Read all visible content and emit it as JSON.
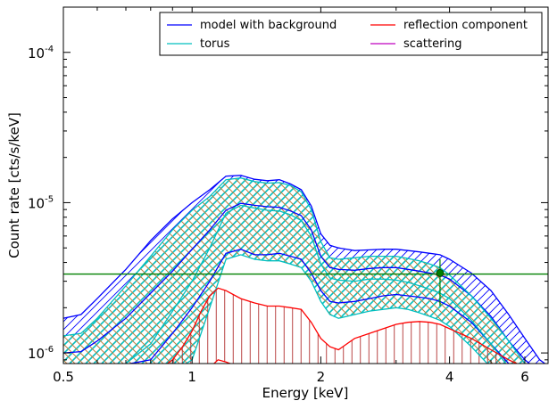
{
  "chart_data": {
    "type": "line",
    "xlabel": "Energy [keV]",
    "ylabel": "Count rate [cts/s/keV]",
    "xscale": "log",
    "yscale": "log",
    "xlim": [
      0.5,
      6.8
    ],
    "ylim": [
      8.5e-07,
      0.0002
    ],
    "grid": false,
    "legend_position": "top-right",
    "x_ticks": [
      {
        "value": 0.5,
        "label": "0.5"
      },
      {
        "value": 1,
        "label": "1"
      },
      {
        "value": 2,
        "label": "2"
      },
      {
        "value": 4,
        "label": "4"
      },
      {
        "value": 6,
        "label": "6"
      }
    ],
    "y_ticks": [
      {
        "value": 1e-06,
        "base": "10",
        "exp": "-6"
      },
      {
        "value": 1e-05,
        "base": "10",
        "exp": "-5"
      },
      {
        "value": 0.0001,
        "base": "10",
        "exp": "-4"
      }
    ],
    "legend": [
      {
        "label": "model with background",
        "color": "#0000ff"
      },
      {
        "label": "torus",
        "color": "#00bfbf"
      },
      {
        "label": "reflection component",
        "color": "#ff0000"
      },
      {
        "label": "scattering",
        "color": "#bf00bf"
      }
    ],
    "background_level": {
      "y": 3.35e-06,
      "color": "#008000"
    },
    "data_point": {
      "x": 3.8,
      "y": 3.4e-06,
      "yerr_low": 2.05e-06,
      "yerr_high": 4.2e-06,
      "color": "#008000"
    },
    "series": [
      {
        "name": "model with background",
        "color": "#0000ff",
        "x": [
          0.5,
          0.55,
          0.6,
          0.7,
          0.8,
          0.9,
          1.0,
          1.1,
          1.2,
          1.3,
          1.4,
          1.5,
          1.6,
          1.7,
          1.8,
          1.9,
          2.0,
          2.1,
          2.2,
          2.4,
          2.6,
          2.8,
          3.0,
          3.2,
          3.4,
          3.6,
          3.8,
          4.0,
          4.5,
          5.0,
          5.5,
          6.0,
          6.5,
          6.8
        ],
        "upper": [
          1.7e-06,
          1.8e-06,
          2.3e-06,
          3.6e-06,
          5.6e-06,
          7.8e-06,
          1e-05,
          1.22e-05,
          1.5e-05,
          1.52e-05,
          1.43e-05,
          1.4e-05,
          1.42e-05,
          1.33e-05,
          1.22e-05,
          9.5e-06,
          6.2e-06,
          5.2e-06,
          5e-06,
          4.8e-06,
          4.85e-06,
          4.9e-06,
          4.9e-06,
          4.8e-06,
          4.7e-06,
          4.6e-06,
          4.5e-06,
          4.2e-06,
          3.4e-06,
          2.6e-06,
          1.8e-06,
          1.25e-06,
          9e-07,
          8.2e-07
        ],
        "middle": [
          1e-06,
          1.02e-06,
          1.2e-06,
          1.7e-06,
          2.5e-06,
          3.5e-06,
          4.9e-06,
          6.6e-06,
          8.9e-06,
          9.9e-06,
          9.6e-06,
          9.4e-06,
          9.3e-06,
          8.8e-06,
          8.2e-06,
          6.6e-06,
          4.4e-06,
          3.7e-06,
          3.6e-06,
          3.55e-06,
          3.65e-06,
          3.7e-06,
          3.7e-06,
          3.6e-06,
          3.5e-06,
          3.4e-06,
          3.3e-06,
          3.1e-06,
          2.4e-06,
          1.75e-06,
          1.2e-06,
          9e-07,
          7.5e-07,
          7e-07
        ],
        "lower": [
          8e-07,
          8e-07,
          8.2e-07,
          8.4e-07,
          9e-07,
          1.35e-06,
          2e-06,
          3e-06,
          4.6e-06,
          4.9e-06,
          4.5e-06,
          4.5e-06,
          4.6e-06,
          4.4e-06,
          4.2e-06,
          3.4e-06,
          2.6e-06,
          2.2e-06,
          2.15e-06,
          2.2e-06,
          2.3e-06,
          2.4e-06,
          2.45e-06,
          2.4e-06,
          2.35e-06,
          2.3e-06,
          2.2e-06,
          2.05e-06,
          1.6e-06,
          1.15e-06,
          8.5e-07,
          7e-07,
          6.5e-07,
          6e-07
        ]
      },
      {
        "name": "torus",
        "color": "#00bfbf",
        "x": [
          0.5,
          0.55,
          0.6,
          0.7,
          0.8,
          0.9,
          1.0,
          1.1,
          1.2,
          1.3,
          1.4,
          1.5,
          1.6,
          1.7,
          1.8,
          1.9,
          2.0,
          2.1,
          2.2,
          2.4,
          2.6,
          2.8,
          3.0,
          3.2,
          3.4,
          3.6,
          3.8,
          4.0,
          4.5,
          5.0,
          5.5,
          6.0,
          6.5,
          6.8
        ],
        "upper": [
          1.3e-06,
          1.35e-06,
          1.7e-06,
          2.8e-06,
          4.4e-06,
          6.6e-06,
          8.9e-06,
          1.1e-05,
          1.42e-05,
          1.46e-05,
          1.38e-05,
          1.35e-05,
          1.36e-05,
          1.3e-05,
          1.18e-05,
          9e-06,
          5.5e-06,
          4.3e-06,
          4.2e-06,
          4.3e-06,
          4.4e-06,
          4.4e-06,
          4.4e-06,
          4.25e-06,
          4.1e-06,
          3.9e-06,
          3.7e-06,
          3.3e-06,
          2.4e-06,
          1.7e-06,
          1.2e-06,
          8.5e-07,
          7e-07,
          6.5e-07
        ],
        "middle": [
          7e-07,
          7e-07,
          7.5e-07,
          8.5e-07,
          1.15e-06,
          1.9e-06,
          3e-06,
          5e-06,
          8.5e-06,
          9.6e-06,
          9.2e-06,
          8.9e-06,
          8.8e-06,
          8.3e-06,
          7.6e-06,
          6e-06,
          3.9e-06,
          3.15e-06,
          3.05e-06,
          3e-06,
          3.1e-06,
          3.1e-06,
          3.05e-06,
          2.95e-06,
          2.8e-06,
          2.65e-06,
          2.5e-06,
          2.3e-06,
          1.65e-06,
          1.15e-06,
          8e-07,
          6.5e-07,
          6e-07,
          5.5e-07
        ],
        "lower": [
          6e-07,
          6e-07,
          6.2e-07,
          6.5e-07,
          7e-07,
          7.5e-07,
          9e-07,
          2e-06,
          4.2e-06,
          4.5e-06,
          4.2e-06,
          4.1e-06,
          4.1e-06,
          3.9e-06,
          3.7e-06,
          3e-06,
          2.2e-06,
          1.8e-06,
          1.7e-06,
          1.8e-06,
          1.9e-06,
          1.95e-06,
          2e-06,
          1.95e-06,
          1.85e-06,
          1.75e-06,
          1.65e-06,
          1.5e-06,
          1.1e-06,
          8e-07,
          6.5e-07,
          6e-07,
          5.5e-07,
          5e-07
        ]
      },
      {
        "name": "reflection component",
        "color": "#ff0000",
        "x": [
          0.85,
          0.9,
          0.95,
          1.0,
          1.05,
          1.1,
          1.15,
          1.2,
          1.3,
          1.4,
          1.5,
          1.6,
          1.7,
          1.8,
          1.9,
          2.0,
          2.1,
          2.2,
          2.4,
          2.6,
          2.8,
          3.0,
          3.2,
          3.4,
          3.6,
          3.8,
          4.0,
          4.5,
          5.0,
          5.5,
          6.0,
          6.5,
          6.8
        ],
        "upper": [
          8e-07,
          9e-07,
          1.1e-06,
          1.4e-06,
          1.9e-06,
          2.4e-06,
          2.7e-06,
          2.6e-06,
          2.3e-06,
          2.15e-06,
          2.05e-06,
          2.05e-06,
          2e-06,
          1.95e-06,
          1.6e-06,
          1.25e-06,
          1.1e-06,
          1.05e-06,
          1.25e-06,
          1.35e-06,
          1.45e-06,
          1.55e-06,
          1.6e-06,
          1.62e-06,
          1.6e-06,
          1.55e-06,
          1.45e-06,
          1.25e-06,
          1.05e-06,
          9e-07,
          8e-07,
          7.5e-07,
          7e-07
        ],
        "lower": [
          6e-07,
          6e-07,
          6e-07,
          6.5e-07,
          7e-07,
          8e-07,
          9e-07,
          8.7e-07,
          8e-07,
          7.5e-07,
          7.2e-07,
          7e-07,
          6.8e-07,
          6.5e-07,
          6e-07,
          5.5e-07,
          5e-07,
          5e-07,
          5e-07,
          5e-07,
          5e-07,
          5e-07,
          5e-07,
          5e-07,
          5e-07,
          5e-07,
          5e-07,
          5e-07,
          5e-07,
          5e-07,
          5e-07,
          5e-07,
          5e-07
        ]
      },
      {
        "name": "scattering",
        "color": "#bf00bf",
        "x": [],
        "upper": [],
        "middle": [],
        "lower": []
      }
    ]
  }
}
